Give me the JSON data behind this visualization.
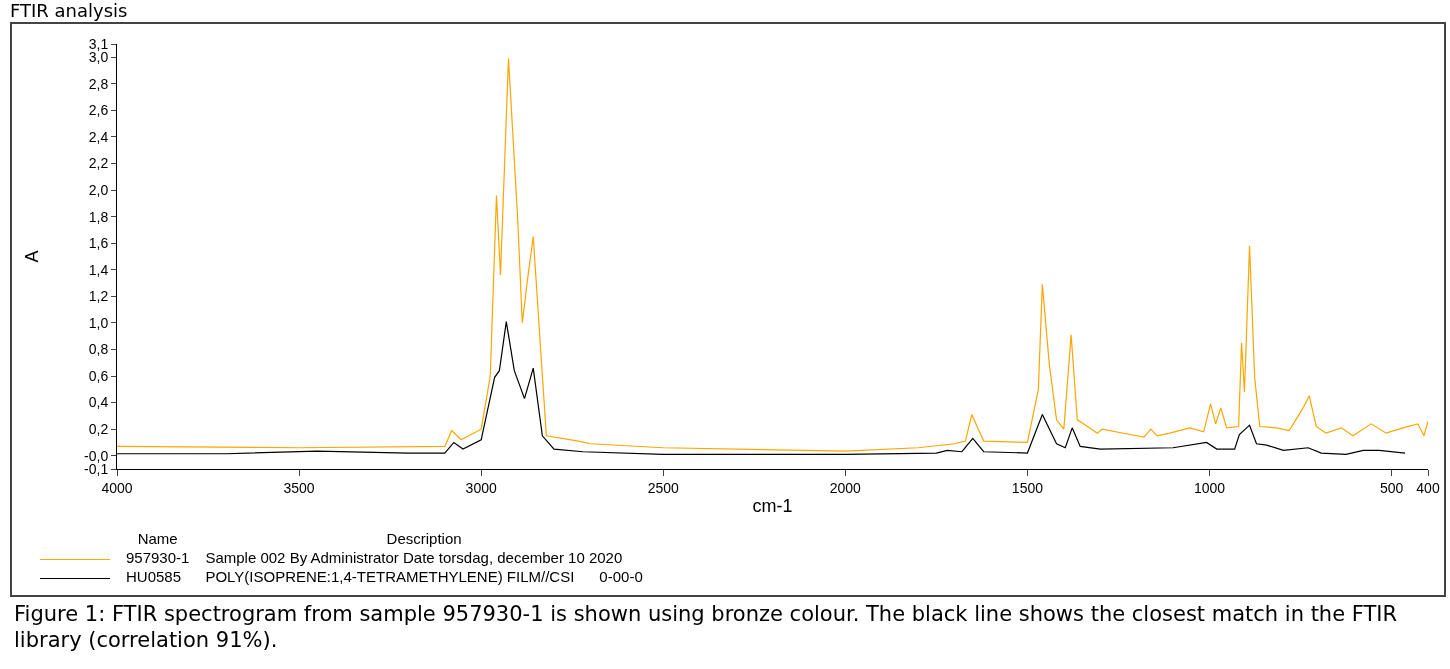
{
  "chart_data": {
    "type": "line",
    "title": "FTIR analysis",
    "xlabel": "cm-1",
    "ylabel": "A",
    "xlim": [
      4000,
      400
    ],
    "xticks": [
      4000,
      3500,
      3000,
      2500,
      2000,
      1500,
      1000,
      500,
      400
    ],
    "ylim": [
      -0.1,
      3.1
    ],
    "yticks": [
      {
        "value": -0.1,
        "label": "-0,1"
      },
      {
        "value": 0,
        "label": "-0,0"
      },
      {
        "value": 0.2,
        "label": "0,2"
      },
      {
        "value": 0.4,
        "label": "0,4"
      },
      {
        "value": 0.6,
        "label": "0,6"
      },
      {
        "value": 0.8,
        "label": "0,8"
      },
      {
        "value": 1.0,
        "label": "1,0"
      },
      {
        "value": 1.2,
        "label": "1,2"
      },
      {
        "value": 1.4,
        "label": "1,4"
      },
      {
        "value": 1.6,
        "label": "1,6"
      },
      {
        "value": 1.8,
        "label": "1,8"
      },
      {
        "value": 2.0,
        "label": "2,0"
      },
      {
        "value": 2.2,
        "label": "2,2"
      },
      {
        "value": 2.4,
        "label": "2,4"
      },
      {
        "value": 2.6,
        "label": "2,6"
      },
      {
        "value": 2.8,
        "label": "2,8"
      },
      {
        "value": 3.0,
        "label": "3,0"
      },
      {
        "value": 3.1,
        "label": "3,1"
      }
    ],
    "grid": false,
    "legend": "bottom",
    "marker": "none",
    "line_style": "solid",
    "series": [
      {
        "name": "957930-1",
        "color": "#ffa500",
        "x": [
          4000,
          3500,
          3100,
          3081,
          3055,
          3000,
          2975,
          2958,
          2947,
          2925,
          2900,
          2887,
          2873,
          2857,
          2821,
          2733,
          2700,
          2500,
          2000,
          1800,
          1700,
          1670,
          1653,
          1620,
          1500,
          1470,
          1459,
          1440,
          1420,
          1400,
          1380,
          1363,
          1340,
          1308,
          1295,
          1218,
          1180,
          1161,
          1144,
          1109,
          1054,
          1016,
          997,
          983,
          969,
          953,
          920,
          912,
          904,
          890,
          876,
          862,
          816,
          781,
          743,
          726,
          707,
          680,
          638,
          606,
          556,
          515,
          469,
          428,
          411,
          400
        ],
        "values": [
          0.07,
          0.06,
          0.07,
          0.19,
          0.12,
          0.2,
          0.6,
          1.96,
          1.36,
          2.99,
          1.8,
          1.0,
          1.32,
          1.65,
          0.15,
          0.11,
          0.09,
          0.06,
          0.035,
          0.06,
          0.09,
          0.11,
          0.31,
          0.11,
          0.1,
          0.5,
          1.29,
          0.69,
          0.27,
          0.2,
          0.91,
          0.27,
          0.23,
          0.17,
          0.2,
          0.16,
          0.14,
          0.2,
          0.15,
          0.17,
          0.21,
          0.18,
          0.39,
          0.24,
          0.36,
          0.21,
          0.22,
          0.85,
          0.48,
          1.58,
          0.59,
          0.22,
          0.21,
          0.19,
          0.36,
          0.45,
          0.22,
          0.17,
          0.21,
          0.15,
          0.24,
          0.17,
          0.21,
          0.24,
          0.15,
          0.26
        ]
      },
      {
        "name": "HU0585",
        "color": "#000000",
        "x": [
          4000,
          3700,
          3450,
          3200,
          3100,
          3075,
          3050,
          3000,
          2963,
          2950,
          2931,
          2909,
          2881,
          2857,
          2832,
          2800,
          2720,
          2500,
          2000,
          1750,
          1720,
          1680,
          1650,
          1620,
          1500,
          1459,
          1420,
          1396,
          1377,
          1355,
          1300,
          1100,
          1008,
          980,
          931,
          918,
          890,
          871,
          843,
          797,
          729,
          693,
          625,
          578,
          534,
          463
        ],
        "values": [
          0.015,
          0.015,
          0.035,
          0.02,
          0.02,
          0.1,
          0.05,
          0.12,
          0.59,
          0.64,
          1.01,
          0.64,
          0.43,
          0.66,
          0.15,
          0.05,
          0.03,
          0.01,
          0.01,
          0.02,
          0.04,
          0.03,
          0.13,
          0.03,
          0.02,
          0.31,
          0.09,
          0.06,
          0.21,
          0.07,
          0.05,
          0.06,
          0.1,
          0.05,
          0.05,
          0.16,
          0.23,
          0.09,
          0.08,
          0.04,
          0.06,
          0.02,
          0.01,
          0.04,
          0.04,
          0.02
        ]
      }
    ],
    "annotations": [
      "Name",
      "Description",
      "Sample 002 By Administrator Date torsdag, december 10 2020",
      "POLY(ISOPRENE:1,4-TETRAMETHYLENE) FILM//CSI      0-00-0",
      "Figure 1: FTIR spectrogram from sample 957930-1 is shown using bronze colour. The black line shows the closest match in the FTIR library (correlation 91%)."
    ]
  }
}
